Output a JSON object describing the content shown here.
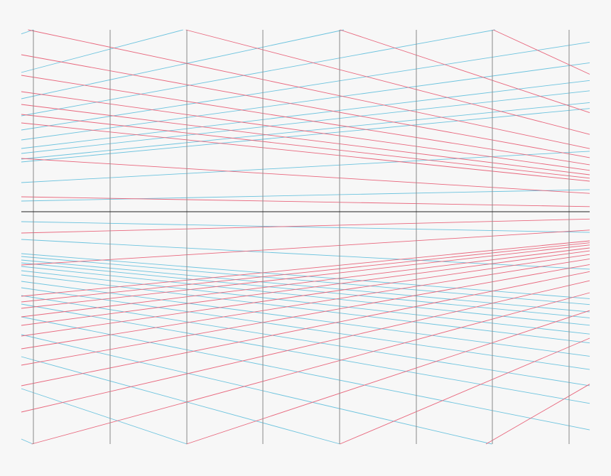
{
  "diagram": {
    "type": "two-point perspective grid",
    "colors": {
      "background": "#f7f7f7",
      "left_vanishing_lines": "#6cc3de",
      "right_vanishing_lines": "#e8667c",
      "vertical_lines": "#8a8a8a",
      "horizon_line": "#222222"
    }
  }
}
